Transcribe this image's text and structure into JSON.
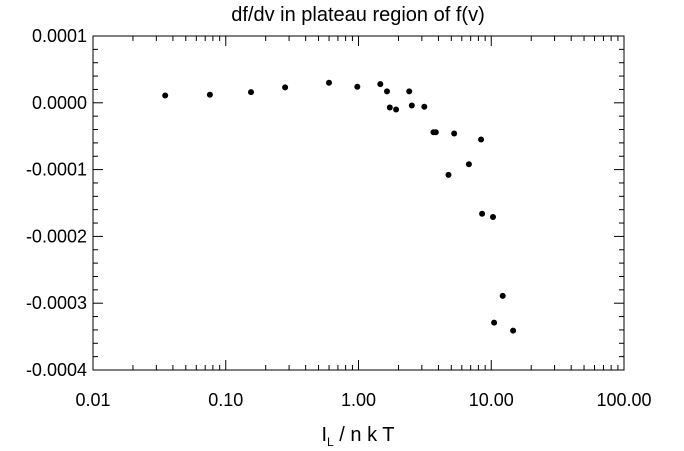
{
  "chart_data": {
    "type": "scatter",
    "title": "df/dv in plateau region of f(v)",
    "xlabel_main": "I",
    "xlabel_sub": "L",
    "xlabel_rest": " / n k T",
    "ylabel": "",
    "x_scale": "log",
    "xlim": [
      0.01,
      100
    ],
    "ylim": [
      -0.0004,
      0.0001
    ],
    "x_ticks": [
      {
        "value": 0.01,
        "label": "0.01"
      },
      {
        "value": 0.1,
        "label": "0.10"
      },
      {
        "value": 1,
        "label": "1.00"
      },
      {
        "value": 10,
        "label": "10.00"
      },
      {
        "value": 100,
        "label": "100.00"
      }
    ],
    "y_ticks": [
      {
        "value": 0.0001,
        "label": "0.0001"
      },
      {
        "value": 0.0,
        "label": "0.0000"
      },
      {
        "value": -0.0001,
        "label": "-0.0001"
      },
      {
        "value": -0.0002,
        "label": "-0.0002"
      },
      {
        "value": -0.0003,
        "label": "-0.0003"
      },
      {
        "value": -0.0004,
        "label": "-0.0004"
      }
    ],
    "grid": false,
    "marker_color": "#000000",
    "series": [
      {
        "x": [
          0.035,
          0.076,
          0.155,
          0.28,
          0.6,
          0.98,
          1.46,
          1.64,
          1.72,
          1.92,
          2.41,
          2.52,
          3.13,
          3.67,
          3.82,
          5.26,
          4.76,
          6.79,
          8.38,
          8.53,
          10.3,
          12.2,
          10.5,
          14.6
        ],
        "y": [
          1.1e-05,
          1.2e-05,
          1.6e-05,
          2.3e-05,
          3e-05,
          2.4e-05,
          2.8e-05,
          1.7e-05,
          -7e-06,
          -1e-05,
          1.7e-05,
          -4e-06,
          -6e-06,
          -4.4e-05,
          -4.4e-05,
          -4.6e-05,
          -0.000108,
          -9.2e-05,
          -5.5e-05,
          -0.000166,
          -0.000171,
          -0.000289,
          -0.000329,
          -0.000341
        ]
      }
    ]
  }
}
